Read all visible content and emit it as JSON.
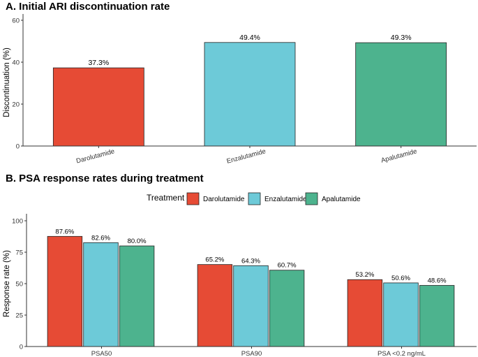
{
  "chart_data": [
    {
      "panel": "A",
      "type": "bar",
      "title": "A. Initial ARI discontinuation rate",
      "xlabel": "",
      "ylabel": "Discontinuation (%)",
      "ylim": [
        0,
        60
      ],
      "yticks": [
        0,
        20,
        40,
        60
      ],
      "categories": [
        "Darolutamide",
        "Enzalutamide",
        "Apalutamide"
      ],
      "values": [
        37.3,
        49.4,
        49.3
      ],
      "data_labels": [
        "37.3%",
        "49.4%",
        "49.3%"
      ],
      "colors": [
        "#E64B35",
        "#6DCAD8",
        "#4DB38E"
      ],
      "grid": false
    },
    {
      "panel": "B",
      "type": "bar",
      "title": "B. PSA response rates during treatment",
      "xlabel": "",
      "ylabel": "Response rate (%)",
      "ylim": [
        0,
        100
      ],
      "yticks": [
        0,
        25,
        50,
        75,
        100
      ],
      "categories": [
        "PSA50",
        "PSA90",
        "PSA <0.2 ng/mL"
      ],
      "legend_title": "Treatment",
      "legend_position": "top",
      "series": [
        {
          "name": "Darolutamide",
          "color": "#E64B35",
          "values": [
            87.6,
            65.2,
            53.2
          ],
          "data_labels": [
            "87.6%",
            "65.2%",
            "53.2%"
          ]
        },
        {
          "name": "Enzalutamide",
          "color": "#6DCAD8",
          "values": [
            82.6,
            64.3,
            50.6
          ],
          "data_labels": [
            "82.6%",
            "64.3%",
            "50.6%"
          ]
        },
        {
          "name": "Apalutamide",
          "color": "#4DB38E",
          "values": [
            80.0,
            60.7,
            48.6
          ],
          "data_labels": [
            "80.0%",
            "60.7%",
            "48.6%"
          ]
        }
      ],
      "grid": false
    }
  ]
}
